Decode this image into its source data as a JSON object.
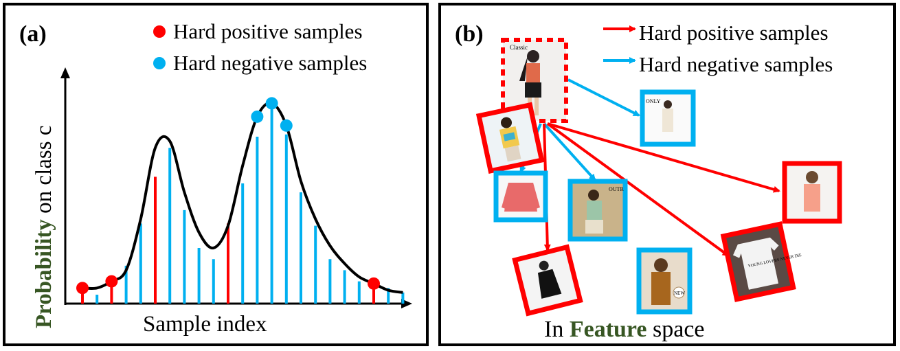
{
  "panel_a": {
    "label": "(a)",
    "legend": [
      {
        "text": "Hard positive samples",
        "color": "#ff0000"
      },
      {
        "text": "Hard negative samples",
        "color": "#00b0f0"
      }
    ],
    "ylabel_highlight": "Probability",
    "ylabel_rest": " on class c",
    "xlabel": "Sample index"
  },
  "panel_b": {
    "label": "(b)",
    "legend": [
      {
        "text": "Hard positive samples",
        "color": "#ff0000"
      },
      {
        "text": "Hard negative samples",
        "color": "#00b0f0"
      }
    ],
    "caption_pre": "In ",
    "caption_highlight": "Feature",
    "caption_post": " space"
  },
  "colors": {
    "positive": "#ff0000",
    "negative": "#00b0f0",
    "highlight": "#375623",
    "curve": "#000000"
  },
  "chart_data": {
    "type": "bar",
    "stems": [
      {
        "kind": "pos",
        "value": 0.05
      },
      {
        "kind": "neg",
        "value": 0.04
      },
      {
        "kind": "pos",
        "value": 0.08
      },
      {
        "kind": "neg",
        "value": 0.17
      },
      {
        "kind": "neg",
        "value": 0.36
      },
      {
        "kind": "pos",
        "value": 0.57
      },
      {
        "kind": "neg",
        "value": 0.7
      },
      {
        "kind": "neg",
        "value": 0.42
      },
      {
        "kind": "neg",
        "value": 0.25
      },
      {
        "kind": "neg",
        "value": 0.2
      },
      {
        "kind": "pos",
        "value": 0.36
      },
      {
        "kind": "neg",
        "value": 0.54
      },
      {
        "kind": "neg",
        "value": 0.75
      },
      {
        "kind": "neg",
        "value": 0.88
      },
      {
        "kind": "neg",
        "value": 0.76
      },
      {
        "kind": "neg",
        "value": 0.5
      },
      {
        "kind": "neg",
        "value": 0.35
      },
      {
        "kind": "neg",
        "value": 0.2
      },
      {
        "kind": "neg",
        "value": 0.15
      },
      {
        "kind": "neg",
        "value": 0.1
      },
      {
        "kind": "pos",
        "value": 0.1
      },
      {
        "kind": "neg",
        "value": 0.07
      },
      {
        "kind": "neg",
        "value": 0.05
      }
    ],
    "curve": [
      0.07,
      0.07,
      0.1,
      0.15,
      0.38,
      0.7,
      0.73,
      0.5,
      0.32,
      0.25,
      0.35,
      0.62,
      0.84,
      0.9,
      0.8,
      0.55,
      0.38,
      0.26,
      0.18,
      0.12,
      0.09,
      0.06,
      0.05
    ],
    "positive_markers": [
      0,
      2,
      20
    ],
    "negative_markers": [
      12,
      13,
      14
    ],
    "ylim": [
      0,
      1
    ]
  },
  "feature_space": {
    "anchor": {
      "name": "anchor",
      "frame": "dashed-red"
    },
    "nodes": [
      {
        "name": "neg-sample-1",
        "kind": "neg"
      },
      {
        "name": "pos-sample-1",
        "kind": "pos"
      },
      {
        "name": "neg-sample-2",
        "kind": "neg"
      },
      {
        "name": "neg-sample-3",
        "kind": "neg"
      },
      {
        "name": "pos-sample-2",
        "kind": "pos"
      },
      {
        "name": "pos-sample-3",
        "kind": "pos"
      },
      {
        "name": "neg-sample-4",
        "kind": "neg"
      },
      {
        "name": "pos-sample-4",
        "kind": "pos"
      }
    ],
    "image_texts": {
      "anchor_brand": "Classic",
      "neg1_brand": "ONLY",
      "neg3_brand": "OUTR",
      "neg4_badge": "NEW",
      "tshirt_print": "YOUNG LOVERS NEVER DIE"
    }
  }
}
